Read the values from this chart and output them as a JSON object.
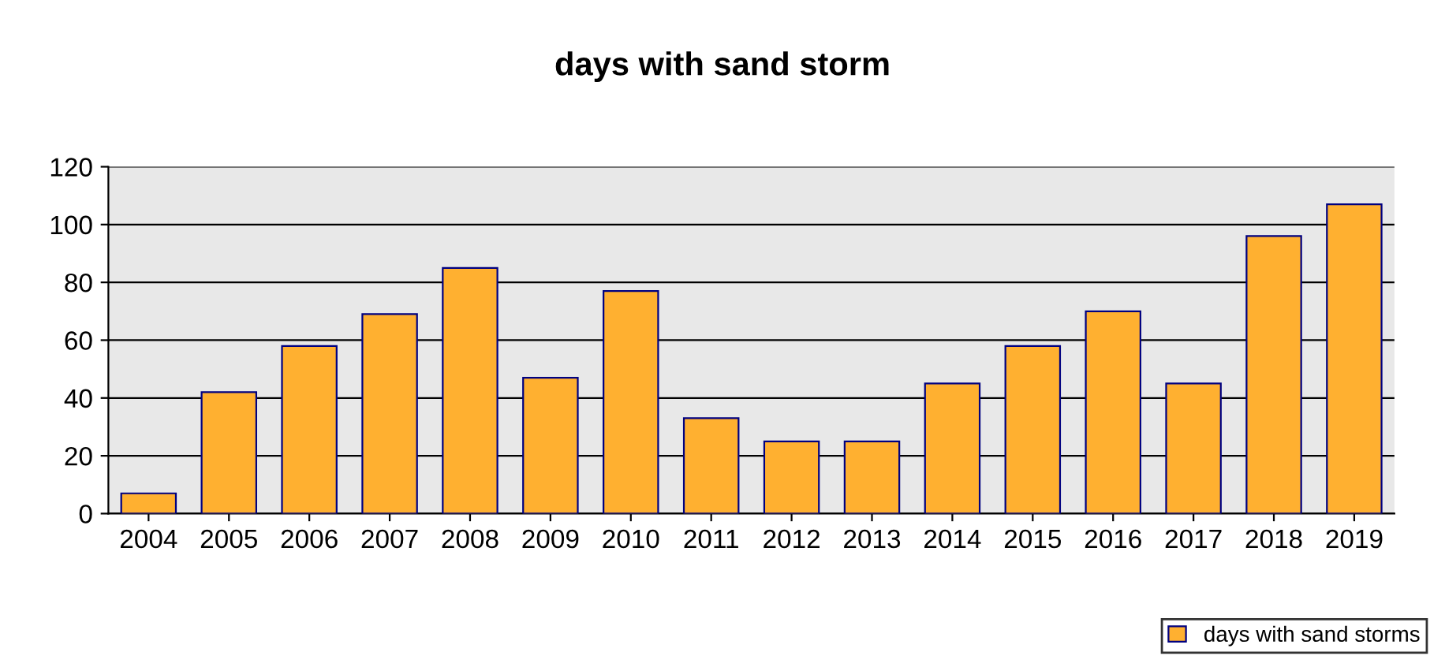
{
  "chart_data": {
    "type": "bar",
    "title": "days with sand storm",
    "categories": [
      "2004",
      "2005",
      "2006",
      "2007",
      "2008",
      "2009",
      "2010",
      "2011",
      "2012",
      "2013",
      "2014",
      "2015",
      "2016",
      "2017",
      "2018",
      "2019"
    ],
    "series": [
      {
        "name": "days with sand storms",
        "color": "#ffb030",
        "values": [
          7,
          42,
          58,
          69,
          85,
          47,
          77,
          33,
          25,
          25,
          45,
          58,
          70,
          45,
          96,
          107
        ]
      }
    ],
    "ylim": [
      0,
      120
    ],
    "yticks": [
      0,
      20,
      40,
      60,
      80,
      100,
      120
    ],
    "grid": "y",
    "legend": "bottom right"
  }
}
